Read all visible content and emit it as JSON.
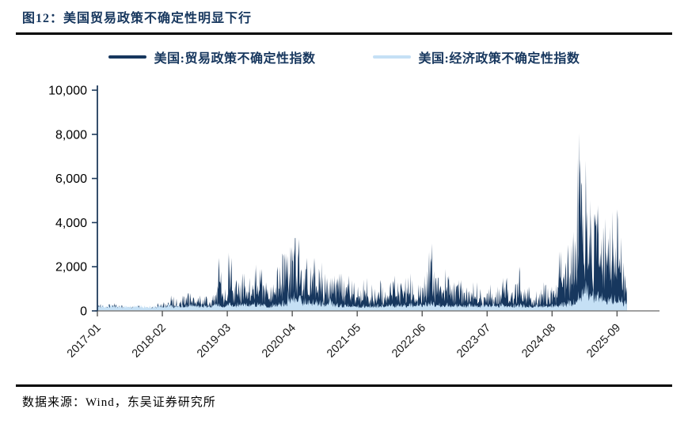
{
  "figure": {
    "title": "图12：美国贸易政策不确定性明显下行",
    "source": "数据来源：Wind，东吴证券研究所"
  },
  "colors": {
    "title": "#17375E",
    "rule": "#000000",
    "y_axis": "#1F3B5C",
    "x_axis": "#808080",
    "tick_label": "#1A1A1A"
  },
  "chart_data": {
    "type": "area",
    "description": "Daily uncertainty indexes for the US, Jan 2017 through late 2025; values synthesized from monthly peak envelope",
    "months_total": 106,
    "start_month": "2017-01",
    "ylim": [
      0,
      10000
    ],
    "y_tick_labels": [
      "0",
      "2,000",
      "4,000",
      "6,000",
      "8,000",
      "10,000"
    ],
    "y_tick_values": [
      0,
      2000,
      4000,
      6000,
      8000,
      10000
    ],
    "x_tick_labels": [
      "2017-01",
      "2018-02",
      "2019-03",
      "2020-04",
      "2021-05",
      "2022-06",
      "2023-07",
      "2024-08",
      "2025-09"
    ],
    "x_tick_interval_months": 13,
    "grid": false,
    "legend_position": "top",
    "series": [
      {
        "name": "美国:贸易政策不确定性指数",
        "color": "#17375E",
        "monthly_peak": [
          300,
          250,
          300,
          350,
          250,
          200,
          180,
          200,
          250,
          180,
          150,
          200,
          350,
          400,
          700,
          650,
          500,
          700,
          800,
          600,
          700,
          650,
          500,
          900,
          2400,
          1000,
          2650,
          1400,
          1300,
          1700,
          1500,
          2100,
          1900,
          1300,
          1100,
          1800,
          2000,
          2600,
          2900,
          3300,
          3250,
          2400,
          2000,
          2400,
          2200,
          1700,
          1500,
          1600,
          1700,
          1400,
          1600,
          1300,
          1100,
          1500,
          1200,
          1000,
          1400,
          1100,
          1300,
          1600,
          1300,
          1500,
          1700,
          1400,
          1200,
          1600,
          3050,
          1800,
          1500,
          1900,
          1600,
          1300,
          1400,
          1100,
          900,
          1300,
          1000,
          800,
          1200,
          900,
          1100,
          1500,
          1000,
          1200,
          2000,
          1000,
          1100,
          900,
          1000,
          1300,
          1100,
          1200,
          2700,
          2200,
          3000,
          3600,
          8050,
          6800,
          5000,
          4400,
          4800,
          4200,
          3800,
          4500,
          4600,
          2200
        ]
      },
      {
        "name": "美国:经济政策不确定性指数",
        "color": "#C5E0F5",
        "monthly_peak": [
          300,
          280,
          320,
          300,
          260,
          250,
          240,
          260,
          280,
          250,
          230,
          260,
          300,
          280,
          320,
          300,
          280,
          320,
          340,
          300,
          320,
          300,
          280,
          350,
          350,
          300,
          380,
          330,
          400,
          380,
          340,
          420,
          400,
          330,
          300,
          380,
          400,
          500,
          950,
          900,
          700,
          600,
          500,
          550,
          500,
          450,
          600,
          400,
          380,
          330,
          350,
          320,
          300,
          320,
          300,
          280,
          320,
          300,
          320,
          340,
          330,
          350,
          400,
          360,
          450,
          420,
          500,
          400,
          380,
          340,
          380,
          350,
          320,
          300,
          340,
          310,
          290,
          320,
          300,
          350,
          380,
          320,
          300,
          330,
          350,
          320,
          290,
          310,
          330,
          310,
          300,
          330,
          380,
          400,
          520,
          560,
          900,
          1400,
          1200,
          1000,
          900,
          850,
          800,
          750,
          700,
          500
        ]
      }
    ]
  }
}
